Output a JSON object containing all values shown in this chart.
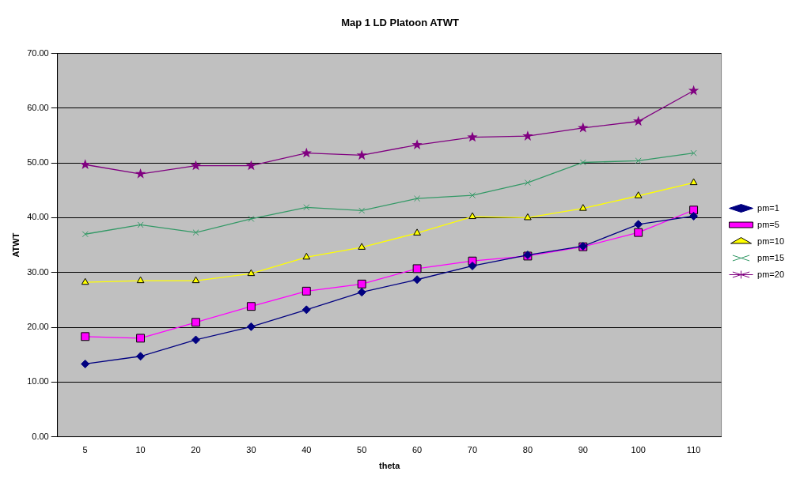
{
  "chart_data": {
    "type": "line",
    "title": "Map 1 LD Platoon ATWT",
    "xlabel": "theta",
    "ylabel": "ATWT",
    "categories": [
      "5",
      "10",
      "20",
      "30",
      "40",
      "50",
      "60",
      "70",
      "80",
      "90",
      "100",
      "110"
    ],
    "series": [
      {
        "name": "pm=1",
        "color": "#000080",
        "marker": "diamond",
        "values": [
          13.3,
          14.7,
          17.7,
          20.1,
          23.2,
          26.4,
          28.7,
          31.2,
          33.2,
          34.8,
          38.8,
          40.3
        ]
      },
      {
        "name": "pm=5",
        "color": "#ff00ff",
        "marker": "square",
        "values": [
          18.3,
          18.0,
          20.9,
          23.8,
          26.6,
          27.9,
          30.7,
          32.1,
          33.0,
          34.7,
          37.3,
          41.4
        ]
      },
      {
        "name": "pm=10",
        "color": "#ffff00",
        "marker": "triangle",
        "values": [
          28.2,
          28.5,
          28.5,
          29.8,
          32.8,
          34.6,
          37.2,
          40.2,
          40.0,
          41.7,
          44.0,
          46.4
        ]
      },
      {
        "name": "pm=15",
        "color": "#339966",
        "marker": "cross",
        "values": [
          37.0,
          38.7,
          37.3,
          39.8,
          41.9,
          41.3,
          43.5,
          44.1,
          46.4,
          50.1,
          50.4,
          51.8
        ]
      },
      {
        "name": "pm=20",
        "color": "#800080",
        "marker": "star",
        "values": [
          49.7,
          48.0,
          49.5,
          49.5,
          51.8,
          51.4,
          53.3,
          54.7,
          54.9,
          56.4,
          57.6,
          63.2
        ]
      }
    ],
    "ylim": [
      0,
      70
    ],
    "yticks": [
      {
        "value": 0,
        "label": "0.00"
      },
      {
        "value": 10,
        "label": "10.00"
      },
      {
        "value": 20,
        "label": "20.00"
      },
      {
        "value": 30,
        "label": "30.00"
      },
      {
        "value": 40,
        "label": "40.00"
      },
      {
        "value": 50,
        "label": "50.00"
      },
      {
        "value": 60,
        "label": "60.00"
      },
      {
        "value": 70,
        "label": "70.00"
      }
    ],
    "grid": "y",
    "legend": "right"
  }
}
